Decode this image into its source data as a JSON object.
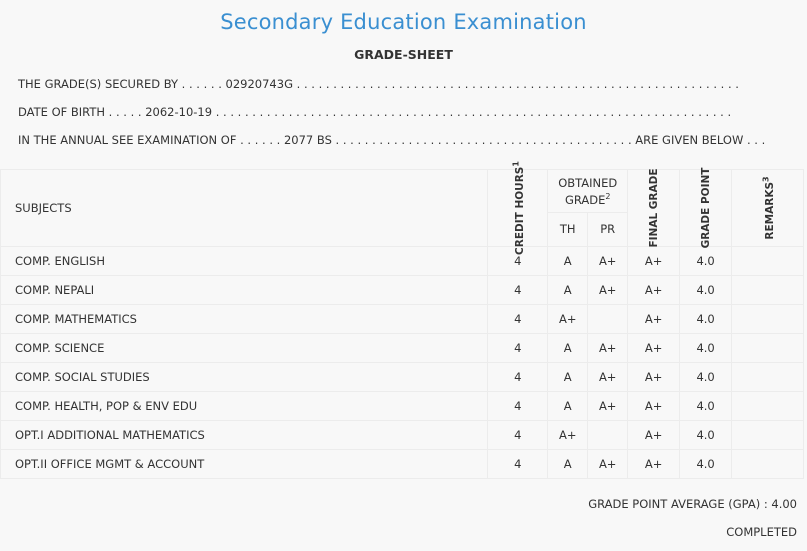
{
  "header": {
    "title": "Secondary Education Examination",
    "subtitle": "GRADE-SHEET"
  },
  "student": {
    "secured_by_line": "THE GRADE(S) SECURED BY . . . . . . 02920743G . . . . . . . . . . . . . . . . . . . . . . . . . . . . . . . . . . . . . . . . . . . . . . . . . . . . . . . . . . . . .",
    "dob_line": "DATE OF BIRTH . . . . . 2062-10-19 . . . . . . . . . . . . . . . . . . . . . . . . . . . . . . . . . . . . . . . . . . . . . . . . . . . . . . . . . . . . . . . . . . . . . . .",
    "exam_line": "IN THE ANNUAL SEE EXAMINATION OF . . . . . . 2077 BS . . . . . . . . . . . . . . . . . . . . . . . . . . . . . . . . . . . . . . . . . ARE GIVEN BELOW . . ."
  },
  "table": {
    "headers": {
      "subjects": "SUBJECTS",
      "credit_hours": "CREDIT HOURS",
      "credit_hours_note": "1",
      "obtained_grade": "OBTAINED GRADE",
      "obtained_grade_note": "2",
      "th": "TH",
      "pr": "PR",
      "final_grade": "FINAL GRADE",
      "grade_point": "GRADE POINT",
      "remarks": "REMARKS",
      "remarks_note": "3"
    },
    "rows": [
      {
        "subject": "COMP. ENGLISH",
        "credit": "4",
        "th": "A",
        "pr": "A+",
        "final": "A+",
        "gp": "4.0",
        "remarks": ""
      },
      {
        "subject": "COMP. NEPALI",
        "credit": "4",
        "th": "A",
        "pr": "A+",
        "final": "A+",
        "gp": "4.0",
        "remarks": ""
      },
      {
        "subject": "COMP. MATHEMATICS",
        "credit": "4",
        "th": "A+",
        "pr": "",
        "final": "A+",
        "gp": "4.0",
        "remarks": ""
      },
      {
        "subject": "COMP. SCIENCE",
        "credit": "4",
        "th": "A",
        "pr": "A+",
        "final": "A+",
        "gp": "4.0",
        "remarks": ""
      },
      {
        "subject": "COMP. SOCIAL STUDIES",
        "credit": "4",
        "th": "A",
        "pr": "A+",
        "final": "A+",
        "gp": "4.0",
        "remarks": ""
      },
      {
        "subject": "COMP. HEALTH, POP & ENV EDU",
        "credit": "4",
        "th": "A",
        "pr": "A+",
        "final": "A+",
        "gp": "4.0",
        "remarks": ""
      },
      {
        "subject": "OPT.I ADDITIONAL MATHEMATICS",
        "credit": "4",
        "th": "A+",
        "pr": "",
        "final": "A+",
        "gp": "4.0",
        "remarks": ""
      },
      {
        "subject": "OPT.II OFFICE MGMT & ACCOUNT",
        "credit": "4",
        "th": "A",
        "pr": "A+",
        "final": "A+",
        "gp": "4.0",
        "remarks": ""
      }
    ]
  },
  "summary": {
    "gpa_line": "GRADE POINT AVERAGE (GPA) : 4.00",
    "status": "COMPLETED"
  }
}
